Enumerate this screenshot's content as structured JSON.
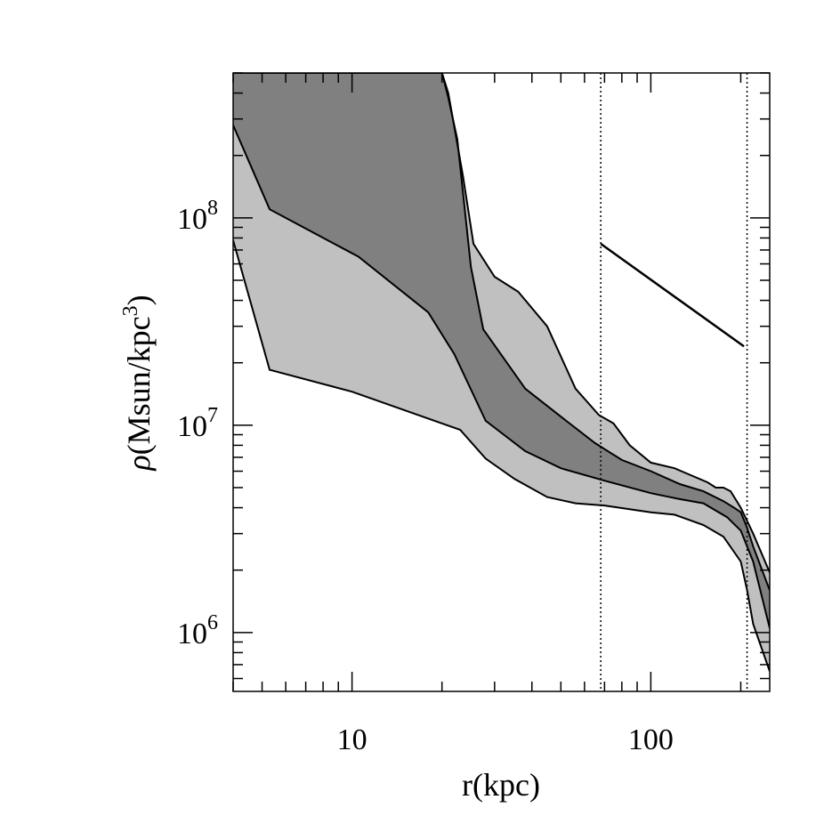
{
  "chart_data": {
    "type": "area",
    "xlabel": "r(kpc)",
    "ylabel": {
      "symbol": "ρ",
      "text": "(Msun/kpc",
      "exponent": "3",
      "close": ")"
    },
    "xscale": "log",
    "yscale": "log",
    "xlim": [
      4,
      250
    ],
    "ylim": [
      520000,
      500000000
    ],
    "x_ticks": [
      {
        "value": 10,
        "label": "10"
      },
      {
        "value": 100,
        "label": "100"
      }
    ],
    "y_ticks": [
      {
        "value": 1000000,
        "base": "10",
        "exp": "6"
      },
      {
        "value": 10000000,
        "base": "10",
        "exp": "7"
      },
      {
        "value": 100000000,
        "base": "10",
        "exp": "8"
      }
    ],
    "colors": {
      "outer_band": "#c0c0c0",
      "inner_band": "#808080",
      "line": "#000000"
    },
    "outer_band": {
      "upper": [
        [
          4,
          500000000
        ],
        [
          20,
          500000000
        ],
        [
          21,
          400000000
        ],
        [
          23.5,
          160000000
        ],
        [
          25.5,
          75000000
        ],
        [
          30,
          52000000
        ],
        [
          36,
          44000000
        ],
        [
          45,
          30000000
        ],
        [
          56,
          15000000
        ],
        [
          67,
          11200000
        ],
        [
          75,
          10200000
        ],
        [
          85,
          8000000
        ],
        [
          100,
          6600000
        ],
        [
          120,
          6200000
        ],
        [
          155,
          5300000
        ],
        [
          165,
          5000000
        ],
        [
          175,
          5000000
        ],
        [
          185,
          4800000
        ],
        [
          200,
          4000000
        ],
        [
          220,
          3000000
        ],
        [
          250,
          1950000
        ]
      ],
      "lower": [
        [
          4,
          78000000
        ],
        [
          5.3,
          18500000
        ],
        [
          10,
          14500000
        ],
        [
          23,
          9500000
        ],
        [
          28,
          6900000
        ],
        [
          35,
          5500000
        ],
        [
          45,
          4500000
        ],
        [
          56,
          4200000
        ],
        [
          70,
          4100000
        ],
        [
          100,
          3800000
        ],
        [
          120,
          3700000
        ],
        [
          150,
          3300000
        ],
        [
          175,
          2900000
        ],
        [
          200,
          2200000
        ],
        [
          210,
          1600000
        ],
        [
          220,
          1100000
        ],
        [
          250,
          650000
        ]
      ]
    },
    "inner_band": {
      "upper": [
        [
          4,
          500000000
        ],
        [
          20,
          500000000
        ],
        [
          21,
          380000000
        ],
        [
          22.5,
          240000000
        ],
        [
          25,
          58000000
        ],
        [
          27.5,
          29000000
        ],
        [
          38,
          15000000
        ],
        [
          50,
          11000000
        ],
        [
          65,
          8200000
        ],
        [
          80,
          6800000
        ],
        [
          100,
          6000000
        ],
        [
          125,
          5200000
        ],
        [
          150,
          4800000
        ],
        [
          175,
          4300000
        ],
        [
          190,
          4000000
        ],
        [
          200,
          3800000
        ],
        [
          210,
          3200000
        ],
        [
          220,
          2600000
        ],
        [
          250,
          1600000
        ]
      ],
      "lower": [
        [
          4,
          280000000
        ],
        [
          5.3,
          110000000
        ],
        [
          10.5,
          65000000
        ],
        [
          18,
          35000000
        ],
        [
          22,
          22000000
        ],
        [
          28,
          10500000
        ],
        [
          38,
          7500000
        ],
        [
          50,
          6200000
        ],
        [
          70,
          5400000
        ],
        [
          100,
          4700000
        ],
        [
          125,
          4400000
        ],
        [
          150,
          4200000
        ],
        [
          180,
          3600000
        ],
        [
          200,
          3100000
        ],
        [
          220,
          2200000
        ],
        [
          250,
          1050000
        ]
      ]
    },
    "reference_line": {
      "points": [
        [
          68,
          75000000
        ],
        [
          205,
          24000000
        ]
      ]
    },
    "vertical_lines": [
      {
        "x": 68,
        "style": "dotted"
      },
      {
        "x": 210,
        "style": "dotted"
      }
    ]
  }
}
